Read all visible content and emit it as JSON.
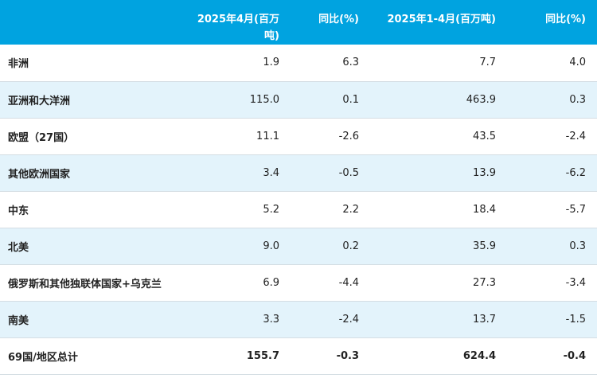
{
  "header": {
    "col_region": "",
    "col_april": "2025年4月(百万吨)",
    "col_april_yoy": "同比(%)",
    "col_ytd": "2025年1-4月(百万吨)",
    "col_ytd_yoy": "同比(%)"
  },
  "rows": [
    {
      "region": "非洲",
      "april": "1.9",
      "april_yoy": "6.3",
      "ytd": "7.7",
      "ytd_yoy": "4.0"
    },
    {
      "region": "亚洲和大洋洲",
      "april": "115.0",
      "april_yoy": "0.1",
      "ytd": "463.9",
      "ytd_yoy": "0.3"
    },
    {
      "region": "欧盟（27国）",
      "april": "11.1",
      "april_yoy": "-2.6",
      "ytd": "43.5",
      "ytd_yoy": "-2.4"
    },
    {
      "region": "其他欧洲国家",
      "april": "3.4",
      "april_yoy": "-0.5",
      "ytd": "13.9",
      "ytd_yoy": "-6.2"
    },
    {
      "region": "中东",
      "april": "5.2",
      "april_yoy": "2.2",
      "ytd": "18.4",
      "ytd_yoy": "-5.7"
    },
    {
      "region": "北美",
      "april": "9.0",
      "april_yoy": "0.2",
      "ytd": "35.9",
      "ytd_yoy": "0.3"
    },
    {
      "region": "俄罗斯和其他独联体国家+乌克兰",
      "april": "6.9",
      "april_yoy": "-4.4",
      "ytd": "27.3",
      "ytd_yoy": "-3.4"
    },
    {
      "region": "南美",
      "april": "3.3",
      "april_yoy": "-2.4",
      "ytd": "13.7",
      "ytd_yoy": "-1.5"
    },
    {
      "region": "69国/地区总计",
      "april": "155.7",
      "april_yoy": "-0.3",
      "ytd": "624.4",
      "ytd_yoy": "-0.4"
    }
  ],
  "colors": {
    "header_bg": "#00a3e0",
    "stripe_bg": "#e3f3fb"
  }
}
